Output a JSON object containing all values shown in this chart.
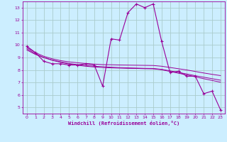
{
  "xlabel": "Windchill (Refroidissement éolien,°C)",
  "bg_color": "#cceeff",
  "grid_color": "#aacccc",
  "line_color": "#990099",
  "x_data": [
    0,
    1,
    2,
    3,
    4,
    5,
    6,
    7,
    8,
    9,
    10,
    11,
    12,
    13,
    14,
    15,
    16,
    17,
    18,
    19,
    20,
    21,
    22,
    23
  ],
  "y_main": [
    9.9,
    9.4,
    8.7,
    8.5,
    8.5,
    8.4,
    8.4,
    8.5,
    8.4,
    6.7,
    10.5,
    10.4,
    12.6,
    13.3,
    13.0,
    13.3,
    10.3,
    7.8,
    7.9,
    7.5,
    7.5,
    6.1,
    6.3,
    4.8
  ],
  "y_trend1": [
    9.8,
    9.4,
    9.1,
    8.9,
    8.75,
    8.65,
    8.58,
    8.52,
    8.47,
    8.43,
    8.42,
    8.4,
    8.39,
    8.38,
    8.37,
    8.36,
    8.3,
    8.2,
    8.1,
    8.0,
    7.88,
    7.76,
    7.65,
    7.55
  ],
  "y_trend2": [
    9.6,
    9.25,
    9.0,
    8.8,
    8.65,
    8.52,
    8.43,
    8.36,
    8.3,
    8.26,
    8.22,
    8.19,
    8.17,
    8.15,
    8.13,
    8.12,
    8.05,
    7.93,
    7.8,
    7.68,
    7.54,
    7.42,
    7.3,
    7.18
  ],
  "y_trend3": [
    9.7,
    9.3,
    9.0,
    8.78,
    8.61,
    8.48,
    8.38,
    8.3,
    8.24,
    8.2,
    8.17,
    8.15,
    8.13,
    8.12,
    8.1,
    8.09,
    8.02,
    7.88,
    7.74,
    7.6,
    7.45,
    7.3,
    7.16,
    7.02
  ],
  "ylim": [
    4.5,
    13.5
  ],
  "xlim": [
    -0.5,
    23.5
  ],
  "yticks": [
    5,
    6,
    7,
    8,
    9,
    10,
    11,
    12,
    13
  ]
}
